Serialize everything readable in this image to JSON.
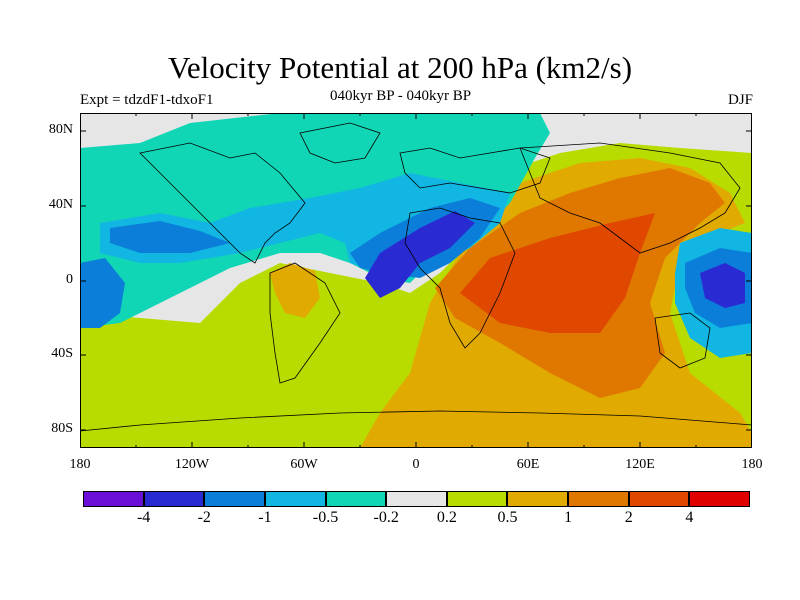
{
  "title": "Velocity Potential at 200 hPa (km2/s)",
  "subtitle": "040kyr BP - 040kyr BP",
  "experiment": "Expt = tdzdF1-tdxoF1",
  "season": "DJF",
  "lat_labels": [
    "80N",
    "40N",
    "0",
    "40S",
    "80S"
  ],
  "lon_labels": [
    "180",
    "120W",
    "60W",
    "0",
    "60E",
    "120E",
    "180"
  ],
  "colorbar": {
    "colors": [
      "#6a0fd6",
      "#2a2ad2",
      "#0a7ed8",
      "#12b6e2",
      "#10d6b6",
      "#e6e6e6",
      "#b8dc00",
      "#e0aa00",
      "#e07800",
      "#e04800",
      "#e00000"
    ],
    "labels": [
      "-4",
      "-2",
      "-1",
      "-0.5",
      "-0.2",
      "0.2",
      "0.5",
      "1",
      "2",
      "4"
    ]
  }
}
